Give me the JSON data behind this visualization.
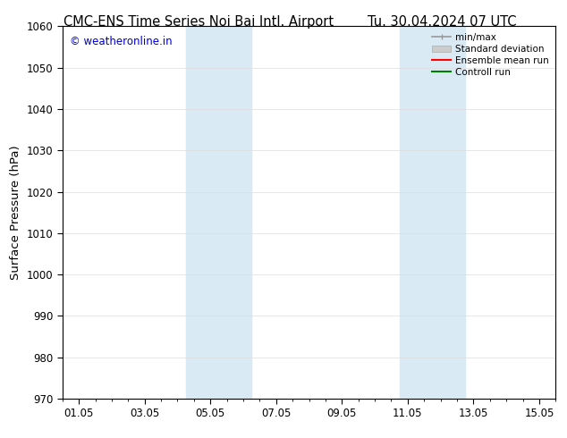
{
  "title_left": "CMC-ENS Time Series Noi Bai Intl. Airport",
  "title_right": "Tu. 30.04.2024 07 UTC",
  "ylabel": "Surface Pressure (hPa)",
  "ylim": [
    970,
    1060
  ],
  "yticks": [
    970,
    980,
    990,
    1000,
    1010,
    1020,
    1030,
    1040,
    1050,
    1060
  ],
  "xlim": [
    0.0,
    15.0
  ],
  "xtick_labels": [
    "01.05",
    "03.05",
    "05.05",
    "07.05",
    "09.05",
    "11.05",
    "13.05",
    "15.05"
  ],
  "xtick_positions_days": [
    0.5,
    2.5,
    4.5,
    6.5,
    8.5,
    10.5,
    12.5,
    14.5
  ],
  "shaded_bands": [
    {
      "start_day": 3.75,
      "end_day": 5.75
    },
    {
      "start_day": 10.25,
      "end_day": 12.25
    }
  ],
  "shaded_color": "#daeaf5",
  "watermark_text": "© weatheronline.in",
  "watermark_color": "#0000cc",
  "bg_color": "#ffffff",
  "grid_color": "#dddddd",
  "title_fontsize": 10.5,
  "tick_fontsize": 8.5,
  "ylabel_fontsize": 9.5
}
